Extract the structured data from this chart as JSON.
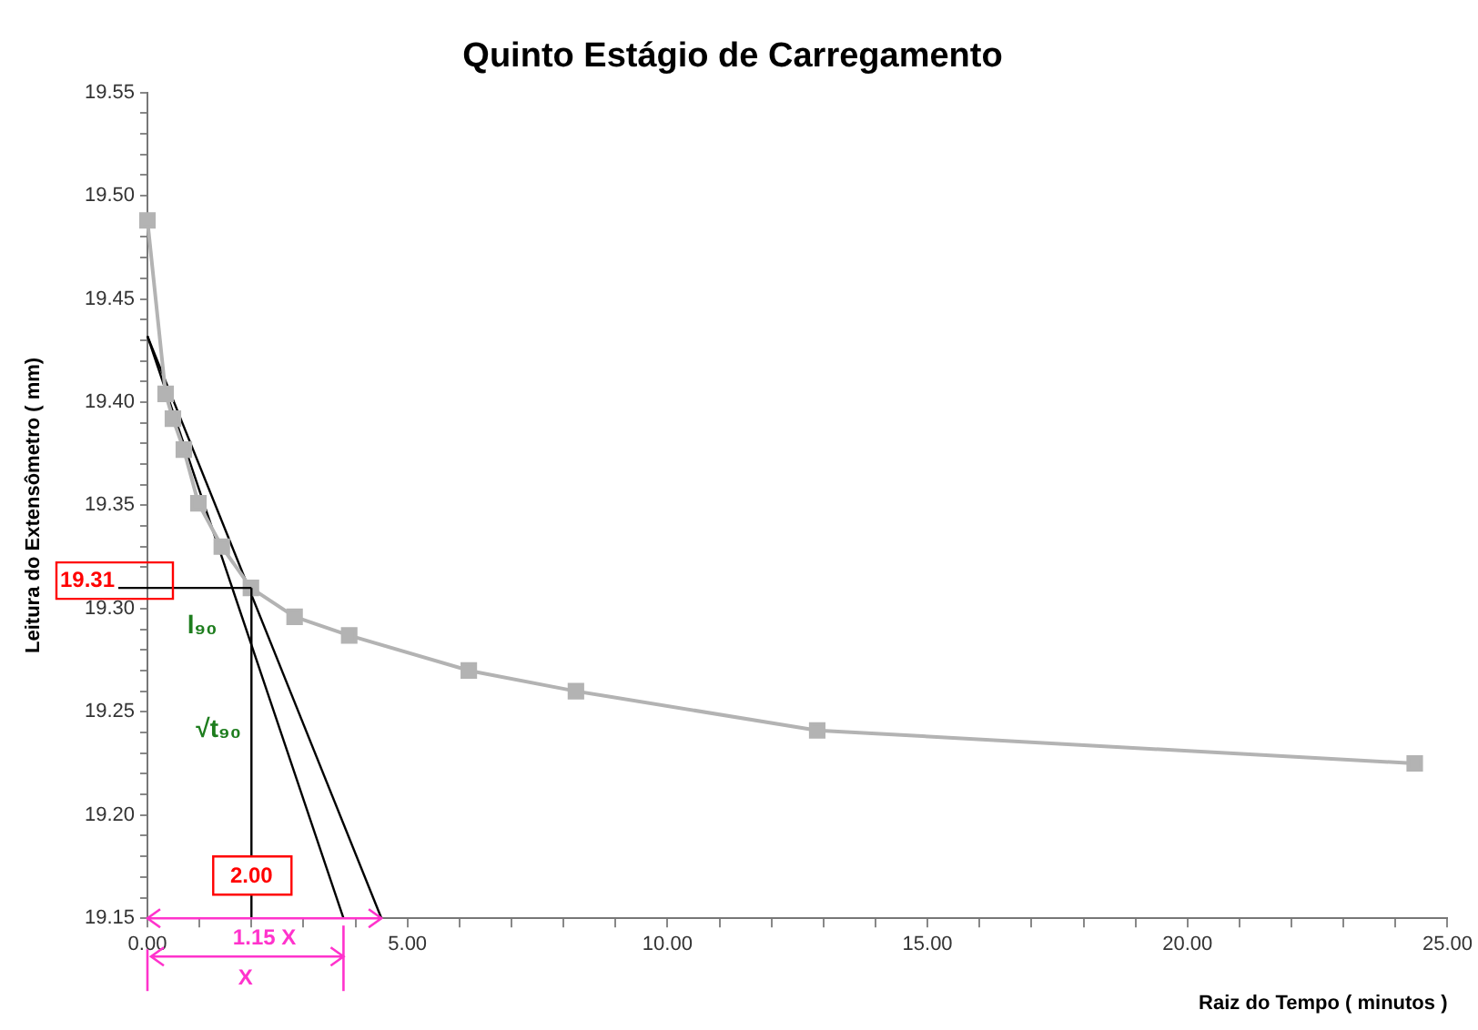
{
  "chart_data": {
    "type": "line",
    "title": "Quinto Estágio de Carregamento",
    "xlabel": "Raiz do Tempo ( minutos )",
    "ylabel": "Leitura do Extensômetro ( mm)",
    "xlim": [
      0,
      25
    ],
    "ylim": [
      19.15,
      19.55
    ],
    "xticks": [
      {
        "value": 0,
        "label": "0.00"
      },
      {
        "value": 1,
        "label": null
      },
      {
        "value": 2,
        "label": null
      },
      {
        "value": 3,
        "label": null
      },
      {
        "value": 4,
        "label": null
      },
      {
        "value": 5,
        "label": "5.00"
      },
      {
        "value": 6,
        "label": null
      },
      {
        "value": 7,
        "label": null
      },
      {
        "value": 8,
        "label": null
      },
      {
        "value": 9,
        "label": null
      },
      {
        "value": 10,
        "label": "10.00"
      },
      {
        "value": 11,
        "label": null
      },
      {
        "value": 12,
        "label": null
      },
      {
        "value": 13,
        "label": null
      },
      {
        "value": 14,
        "label": null
      },
      {
        "value": 15,
        "label": "15.00"
      },
      {
        "value": 16,
        "label": null
      },
      {
        "value": 17,
        "label": null
      },
      {
        "value": 18,
        "label": null
      },
      {
        "value": 19,
        "label": null
      },
      {
        "value": 20,
        "label": "20.00"
      },
      {
        "value": 21,
        "label": null
      },
      {
        "value": 22,
        "label": null
      },
      {
        "value": 23,
        "label": null
      },
      {
        "value": 24,
        "label": null
      },
      {
        "value": 25,
        "label": "25.00"
      }
    ],
    "yticks": [
      {
        "value": 19.15,
        "label": "19.15"
      },
      {
        "value": 19.16,
        "label": null
      },
      {
        "value": 19.17,
        "label": null
      },
      {
        "value": 19.18,
        "label": null
      },
      {
        "value": 19.19,
        "label": null
      },
      {
        "value": 19.2,
        "label": "19.20"
      },
      {
        "value": 19.21,
        "label": null
      },
      {
        "value": 19.22,
        "label": null
      },
      {
        "value": 19.23,
        "label": null
      },
      {
        "value": 19.24,
        "label": null
      },
      {
        "value": 19.25,
        "label": "19.25"
      },
      {
        "value": 19.26,
        "label": null
      },
      {
        "value": 19.27,
        "label": null
      },
      {
        "value": 19.28,
        "label": null
      },
      {
        "value": 19.29,
        "label": null
      },
      {
        "value": 19.3,
        "label": "19.30"
      },
      {
        "value": 19.31,
        "label": null
      },
      {
        "value": 19.32,
        "label": null
      },
      {
        "value": 19.33,
        "label": null
      },
      {
        "value": 19.34,
        "label": null
      },
      {
        "value": 19.35,
        "label": "19.35"
      },
      {
        "value": 19.36,
        "label": null
      },
      {
        "value": 19.37,
        "label": null
      },
      {
        "value": 19.38,
        "label": null
      },
      {
        "value": 19.39,
        "label": null
      },
      {
        "value": 19.4,
        "label": "19.40"
      },
      {
        "value": 19.41,
        "label": null
      },
      {
        "value": 19.42,
        "label": null
      },
      {
        "value": 19.43,
        "label": null
      },
      {
        "value": 19.44,
        "label": null
      },
      {
        "value": 19.45,
        "label": "19.45"
      },
      {
        "value": 19.46,
        "label": null
      },
      {
        "value": 19.47,
        "label": null
      },
      {
        "value": 19.48,
        "label": null
      },
      {
        "value": 19.49,
        "label": null
      },
      {
        "value": 19.5,
        "label": "19.50"
      },
      {
        "value": 19.51,
        "label": null
      },
      {
        "value": 19.52,
        "label": null
      },
      {
        "value": 19.53,
        "label": null
      },
      {
        "value": 19.54,
        "label": null
      },
      {
        "value": 19.55,
        "label": "19.55"
      }
    ],
    "grid": false,
    "legend": false,
    "series": [
      {
        "color": "#b3b3b3",
        "marker": "square",
        "x": [
          0,
          0.35,
          0.49,
          0.7,
          0.98,
          1.43,
          1.99,
          2.83,
          3.88,
          6.18,
          8.24,
          12.88,
          24.37
        ],
        "values": [
          19.488,
          19.404,
          19.392,
          19.377,
          19.351,
          19.33,
          19.31,
          19.296,
          19.287,
          19.27,
          19.26,
          19.241,
          19.225
        ]
      },
      {
        "color": "#000000",
        "marker": "none",
        "x": [
          0,
          4.5
        ],
        "values": [
          19.432,
          19.15
        ]
      },
      {
        "color": "#000000",
        "marker": "none",
        "x": [
          0,
          3.77
        ],
        "values": [
          19.432,
          19.15
        ]
      }
    ],
    "ref_lines": [
      {
        "axis": "y",
        "value": 19.31,
        "label": "19.31",
        "color": "#000000"
      },
      {
        "axis": "x",
        "value": 2.0,
        "label": "2.00",
        "color": "#000000"
      }
    ],
    "annotations": [
      "l₉₀",
      "√t₉₀",
      "1.15 X",
      "X"
    ]
  }
}
